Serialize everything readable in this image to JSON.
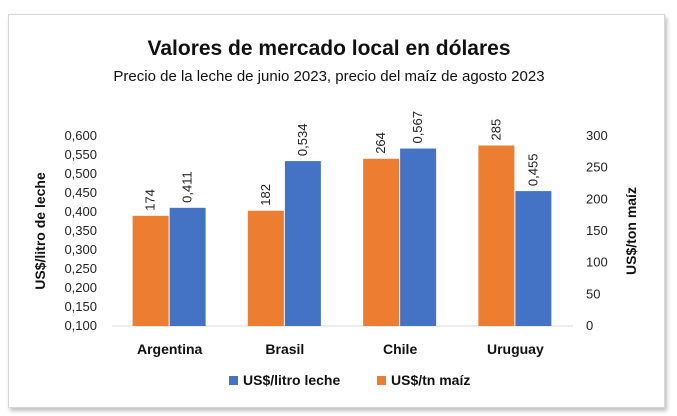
{
  "chart_data": {
    "type": "bar",
    "title": "Valores de mercado local en dólares",
    "subtitle": "Precio de la leche de junio 2023, precio del maíz de agosto 2023",
    "categories": [
      "Argentina",
      "Brasil",
      "Chile",
      "Uruguay"
    ],
    "y_left": {
      "label": "US$/litro de leche",
      "range": [
        0.1,
        0.6
      ],
      "ticks": [
        "0,100",
        "0,150",
        "0,200",
        "0,250",
        "0,300",
        "0,350",
        "0,400",
        "0,450",
        "0,500",
        "0,550",
        "0,600"
      ]
    },
    "y_right": {
      "label": "US$/ton maíz",
      "range": [
        0,
        300
      ],
      "ticks": [
        "0",
        "50",
        "100",
        "150",
        "200",
        "250",
        "300"
      ]
    },
    "series": [
      {
        "name": "US$/tn maíz",
        "axis": "right",
        "color": "#ED7D31",
        "values": [
          174,
          182,
          264,
          285
        ],
        "labels": [
          "174",
          "182",
          "264",
          "285"
        ]
      },
      {
        "name": "US$/litro leche",
        "axis": "left",
        "color": "#4472C4",
        "values": [
          0.411,
          0.534,
          0.567,
          0.455
        ],
        "labels": [
          "0,411",
          "0,534",
          "0,567",
          "0,455"
        ]
      }
    ],
    "legend": {
      "position": "bottom",
      "order": [
        "US$/litro leche",
        "US$/tn maíz"
      ]
    },
    "grid": false
  }
}
